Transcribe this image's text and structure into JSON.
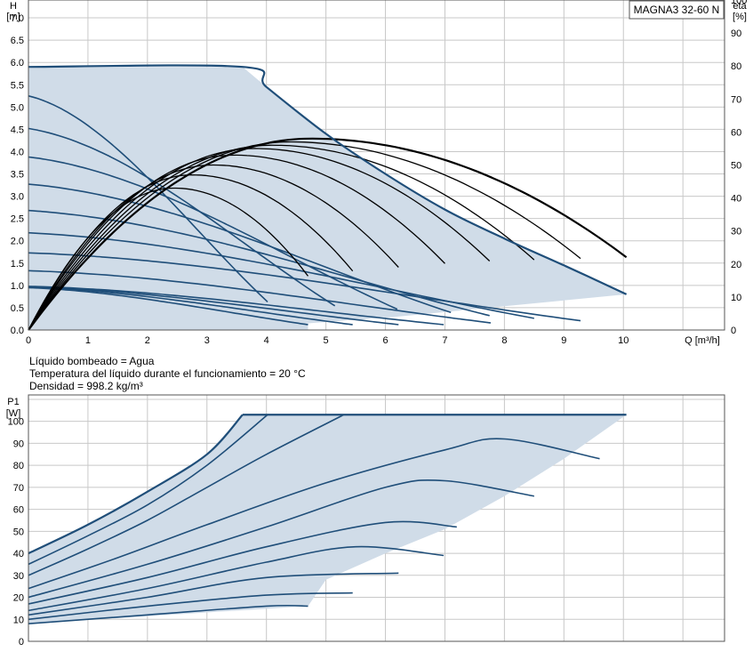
{
  "colors": {
    "envelope": "#d0dce8",
    "curve": "#1f4e79",
    "eta": "#000000",
    "grid": "#c8c8c8"
  },
  "model_label": "MAGNA3 32-60 N",
  "info": [
    "Líquido bombeado = Agua",
    "Temperatura del líquido durante el funcionamiento = 20 °C",
    "Densidad = 998.2 kg/m³"
  ],
  "chart_data": [
    {
      "type": "line",
      "name": "head",
      "y_axis_title": [
        "H",
        "[m]"
      ],
      "y2_axis_title": [
        "eta",
        "[%]"
      ],
      "x_axis_title": "Q [m³/h]",
      "xlim": [
        0,
        11.7
      ],
      "ylim": [
        0,
        7.4
      ],
      "y2lim": [
        0,
        100
      ],
      "x_ticks": [
        0,
        1,
        2,
        3,
        4,
        5,
        6,
        7,
        8,
        9,
        10
      ],
      "y_ticks": [
        "0.0",
        "0.5",
        "1.0",
        "1.5",
        "2.0",
        "2.5",
        "3.0",
        "3.5",
        "4.0",
        "4.5",
        "5.0",
        "5.5",
        "6.0",
        "6.5",
        "7.0"
      ],
      "y2_ticks": [
        0,
        10,
        20,
        30,
        40,
        50,
        60,
        70,
        80,
        90,
        100
      ],
      "grid": true,
      "envelope": [
        [
          0,
          5.9
        ],
        [
          3.6,
          5.9
        ],
        [
          4,
          5.45
        ],
        [
          5,
          4.4
        ],
        [
          6,
          3.5
        ],
        [
          7,
          2.7
        ],
        [
          8,
          2.05
        ],
        [
          9,
          1.45
        ],
        [
          10.05,
          0.8
        ],
        [
          6.2,
          0.3
        ],
        [
          4.7,
          0.15
        ],
        [
          4.7,
          0
        ],
        [
          0,
          0
        ]
      ],
      "max_curve": [
        [
          0,
          5.9
        ],
        [
          3.6,
          5.9
        ],
        [
          4,
          5.45
        ],
        [
          5,
          4.4
        ],
        [
          6,
          3.5
        ],
        [
          7,
          2.7
        ],
        [
          8,
          2.05
        ],
        [
          9,
          1.45
        ],
        [
          10.05,
          0.8
        ]
      ],
      "head_curves": [
        {
          "h0": 5.25,
          "qmax": 4.02
        },
        {
          "h0": 4.52,
          "qmax": 5.15
        },
        {
          "h0": 3.88,
          "qmax": 6.2
        },
        {
          "h0": 3.27,
          "qmax": 7.1
        },
        {
          "h0": 2.68,
          "qmax": 7.75
        },
        {
          "h0": 2.18,
          "qmax": 8.5
        },
        {
          "h0": 1.73,
          "qmax": 9.28
        },
        {
          "h0": 1.33,
          "qmax": 7.77
        },
        {
          "h0": 0.98,
          "qmax": 6.98
        },
        {
          "h0": 0.97,
          "qmax": 6.22
        },
        {
          "h0": 0.96,
          "qmax": 5.45
        },
        {
          "h0": 0.95,
          "qmax": 4.7
        }
      ],
      "eta_curves": [
        {
          "qend": 10.05,
          "peak_q": 4.75,
          "peak_eta": 58
        },
        {
          "qend": 9.28,
          "peak_q": 4.4,
          "peak_eta": 57
        },
        {
          "qend": 8.5,
          "peak_q": 4.1,
          "peak_eta": 56
        },
        {
          "qend": 7.75,
          "peak_q": 3.8,
          "peak_eta": 55
        },
        {
          "qend": 7.0,
          "peak_q": 3.45,
          "peak_eta": 53
        },
        {
          "qend": 6.22,
          "peak_q": 3.1,
          "peak_eta": 50
        },
        {
          "qend": 5.45,
          "peak_q": 2.75,
          "peak_eta": 47
        },
        {
          "qend": 4.7,
          "peak_q": 2.45,
          "peak_eta": 43
        }
      ]
    },
    {
      "type": "line",
      "name": "power",
      "y_axis_title": [
        "P1",
        "[W]"
      ],
      "xlim": [
        0,
        11.7
      ],
      "ylim": [
        0,
        112
      ],
      "y_ticks": [
        0,
        10,
        20,
        30,
        40,
        50,
        60,
        70,
        80,
        90,
        100
      ],
      "grid": true,
      "envelope": [
        [
          0,
          40
        ],
        [
          1,
          53
        ],
        [
          2,
          68
        ],
        [
          3,
          85
        ],
        [
          3.6,
          103
        ],
        [
          10.05,
          103
        ],
        [
          9,
          83
        ],
        [
          8,
          66
        ],
        [
          7,
          51
        ],
        [
          6,
          40
        ],
        [
          5,
          28
        ],
        [
          4.7,
          16
        ],
        [
          0,
          8
        ],
        [
          0,
          40
        ]
      ],
      "power_curves": [
        {
          "pts": [
            [
              0,
              40
            ],
            [
              1,
              53
            ],
            [
              2,
              68
            ],
            [
              3,
              85
            ],
            [
              3.6,
              103
            ]
          ]
        },
        {
          "pts": [
            [
              0,
              35
            ],
            [
              1,
              48
            ],
            [
              2,
              62
            ],
            [
              3,
              80
            ],
            [
              4.02,
              103
            ]
          ]
        },
        {
          "pts": [
            [
              0,
              30
            ],
            [
              1,
              42
            ],
            [
              2,
              55
            ],
            [
              3,
              70
            ],
            [
              4,
              85
            ],
            [
              5.3,
              103
            ]
          ]
        },
        {
          "pts": [
            [
              0,
              24
            ],
            [
              1.5,
              38
            ],
            [
              3,
              53
            ],
            [
              5,
              72
            ],
            [
              7,
              87
            ],
            [
              8,
              92
            ],
            [
              9.6,
              83
            ]
          ]
        },
        {
          "pts": [
            [
              0,
              20
            ],
            [
              2,
              35
            ],
            [
              4,
              52
            ],
            [
              6,
              70
            ],
            [
              7,
              73
            ],
            [
              8.5,
              66
            ]
          ]
        },
        {
          "pts": [
            [
              0,
              17
            ],
            [
              2,
              29
            ],
            [
              4,
              43
            ],
            [
              6,
              54
            ],
            [
              7.2,
              52
            ]
          ]
        },
        {
          "pts": [
            [
              0,
              14
            ],
            [
              2,
              24
            ],
            [
              4,
              36
            ],
            [
              5.5,
              43
            ],
            [
              6.98,
              39
            ]
          ]
        },
        {
          "pts": [
            [
              0,
              12
            ],
            [
              2,
              20
            ],
            [
              4,
              29
            ],
            [
              6.22,
              31
            ]
          ]
        },
        {
          "pts": [
            [
              0,
              10
            ],
            [
              2,
              16
            ],
            [
              4,
              21
            ],
            [
              5.45,
              22
            ]
          ]
        },
        {
          "pts": [
            [
              0,
              8
            ],
            [
              2,
              12
            ],
            [
              4,
              16
            ],
            [
              4.7,
              16
            ]
          ]
        }
      ]
    }
  ]
}
